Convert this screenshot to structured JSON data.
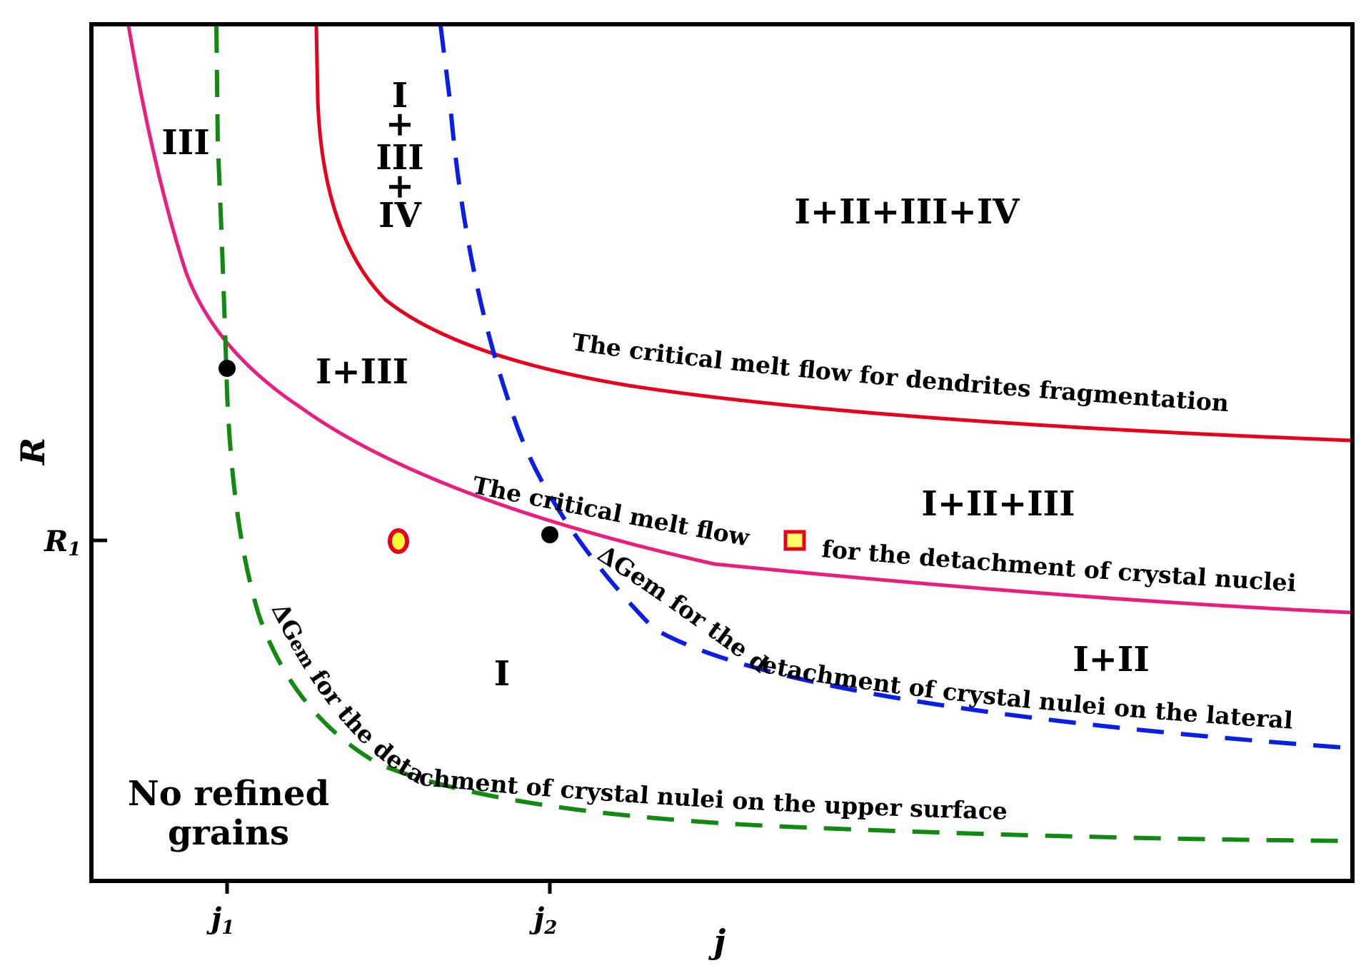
{
  "axes": {
    "x_name": "j",
    "y_name": "R",
    "x_ticks": [
      {
        "main": "j",
        "sub": "1"
      },
      {
        "main": "j",
        "sub": "2"
      }
    ],
    "y_ticks": [
      {
        "main": "R",
        "sub": "1"
      }
    ]
  },
  "regions": {
    "r_iii": "III",
    "r_i_iii_iv": [
      "I",
      "+",
      "III",
      "+",
      "IV"
    ],
    "r_all": "I+II+III+IV",
    "r_i_iii": "I+III",
    "r_i_ii_iii": "I+II+III",
    "r_i_ii": "I+II",
    "r_i": "I",
    "r_none": [
      "No refined",
      "grains"
    ]
  },
  "curves": {
    "red": {
      "label": "The critical melt flow for dendrites fragmentation",
      "color": "#e8001c"
    },
    "pink": {
      "label_a": "The critical melt flow",
      "label_b": "for the detachment of crystal nuclei",
      "color": "#ea1e7e"
    },
    "blue": {
      "label": "ΔGem for the detachment of crystal nulei on the lateral",
      "color": "#0a1ee6"
    },
    "green": {
      "label_a": "ΔG",
      "label_sub": "em",
      "label_b": " for the detachment of crystal nulei on the upper surface",
      "color": "#128a12"
    }
  },
  "markers": {
    "circle": {
      "fill": "#ffff33",
      "stroke": "#e8001c"
    },
    "square": {
      "fill": "#ffff66",
      "stroke": "#e8001c"
    }
  }
}
